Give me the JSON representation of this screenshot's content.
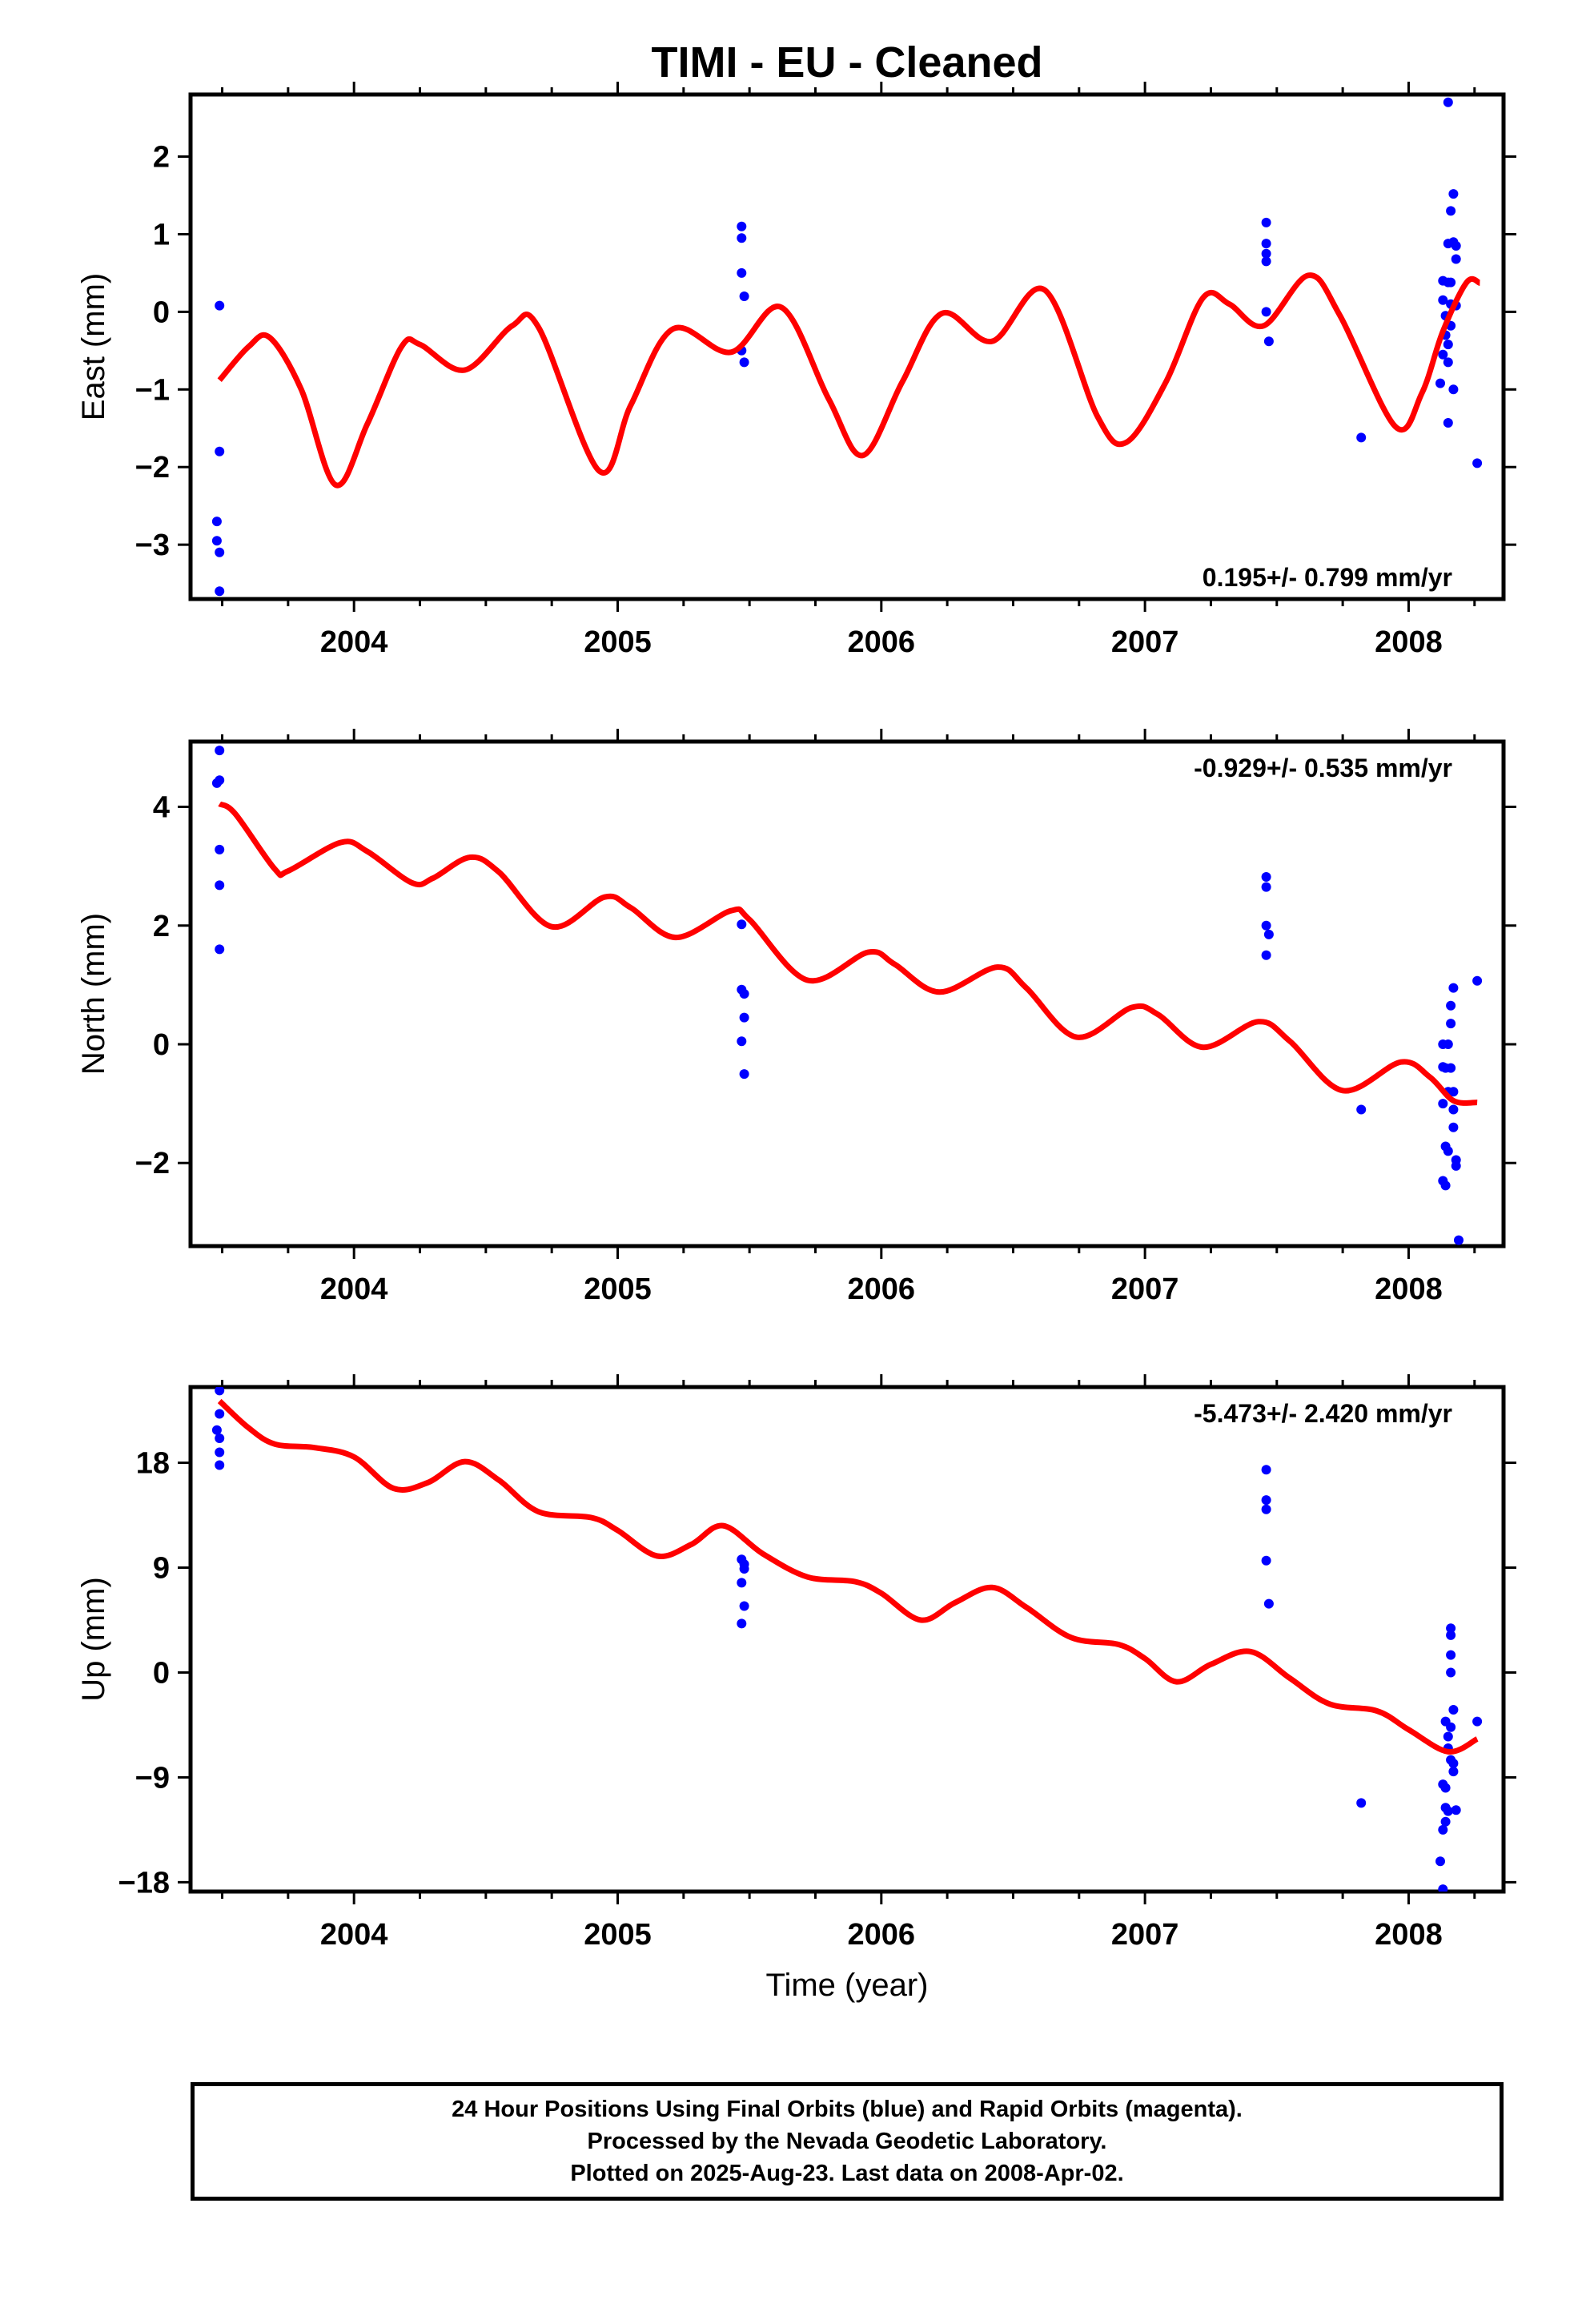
{
  "title": "TIMI  - EU - Cleaned",
  "footer": {
    "line1": "24 Hour Positions Using Final Orbits (blue) and Rapid Orbits (magenta).",
    "line2": "Processed by the Nevada Geodetic Laboratory.",
    "line3": "Plotted on 2025-Aug-23. Last data on 2008-Apr-02."
  },
  "colors": {
    "final_orbits": "#0000ff",
    "model_fit": "#ff0000",
    "frame": "#000000"
  },
  "chart_data": [
    {
      "type": "scatter",
      "ylabel": "East (mm)",
      "xlabel": "",
      "xlim": [
        2003.38,
        2008.36
      ],
      "ylim": [
        -3.7,
        2.8
      ],
      "xticks": [
        "2004",
        "2005",
        "2006",
        "2007",
        "2008"
      ],
      "yticks": [
        2,
        1,
        0,
        -1,
        -2,
        -3
      ],
      "rate_label": "0.195+/- 0.799 mm/yr",
      "rate_position": "bottom-right",
      "points": [
        [
          2003.49,
          0.08
        ],
        [
          2003.49,
          -1.8
        ],
        [
          2003.48,
          -2.7
        ],
        [
          2003.48,
          -2.95
        ],
        [
          2003.49,
          -3.1
        ],
        [
          2003.49,
          -3.6
        ],
        [
          2005.47,
          1.1
        ],
        [
          2005.47,
          0.95
        ],
        [
          2005.47,
          0.5
        ],
        [
          2005.48,
          0.2
        ],
        [
          2005.47,
          -0.5
        ],
        [
          2005.48,
          -0.65
        ],
        [
          2007.46,
          1.15
        ],
        [
          2007.46,
          0.88
        ],
        [
          2007.46,
          0.75
        ],
        [
          2007.46,
          0.65
        ],
        [
          2007.46,
          0.0
        ],
        [
          2007.47,
          -0.38
        ],
        [
          2007.82,
          -1.62
        ],
        [
          2008.13,
          0.4
        ],
        [
          2008.13,
          0.15
        ],
        [
          2008.13,
          -0.55
        ],
        [
          2008.12,
          -0.92
        ],
        [
          2008.14,
          -0.3
        ],
        [
          2008.14,
          -0.05
        ],
        [
          2008.15,
          2.7
        ],
        [
          2008.15,
          0.88
        ],
        [
          2008.15,
          0.38
        ],
        [
          2008.15,
          -0.42
        ],
        [
          2008.15,
          -0.65
        ],
        [
          2008.15,
          -1.43
        ],
        [
          2008.16,
          1.3
        ],
        [
          2008.16,
          0.38
        ],
        [
          2008.16,
          0.1
        ],
        [
          2008.16,
          -0.18
        ],
        [
          2008.17,
          0.9
        ],
        [
          2008.17,
          1.52
        ],
        [
          2008.18,
          0.85
        ],
        [
          2008.18,
          0.68
        ],
        [
          2008.18,
          0.08
        ],
        [
          2008.17,
          -1.0
        ],
        [
          2008.26,
          -1.95
        ]
      ],
      "model": [
        [
          2003.49,
          -0.88
        ],
        [
          2003.6,
          -0.45
        ],
        [
          2003.68,
          -0.33
        ],
        [
          2003.8,
          -1.0
        ],
        [
          2003.93,
          -2.23
        ],
        [
          2004.05,
          -1.45
        ],
        [
          2004.18,
          -0.45
        ],
        [
          2004.25,
          -0.42
        ],
        [
          2004.42,
          -0.75
        ],
        [
          2004.6,
          -0.18
        ],
        [
          2004.7,
          -0.2
        ],
        [
          2004.93,
          -2.05
        ],
        [
          2005.05,
          -1.2
        ],
        [
          2005.21,
          -0.22
        ],
        [
          2005.43,
          -0.52
        ],
        [
          2005.62,
          0.06
        ],
        [
          2005.8,
          -1.12
        ],
        [
          2005.93,
          -1.85
        ],
        [
          2006.08,
          -0.9
        ],
        [
          2006.23,
          -0.02
        ],
        [
          2006.42,
          -0.38
        ],
        [
          2006.62,
          0.28
        ],
        [
          2006.82,
          -1.35
        ],
        [
          2006.93,
          -1.68
        ],
        [
          2007.08,
          -0.9
        ],
        [
          2007.22,
          0.18
        ],
        [
          2007.32,
          0.1
        ],
        [
          2007.45,
          -0.18
        ],
        [
          2007.62,
          0.47
        ],
        [
          2007.74,
          -0.05
        ],
        [
          2007.95,
          -1.48
        ],
        [
          2008.05,
          -1.05
        ],
        [
          2008.13,
          -0.25
        ],
        [
          2008.22,
          0.38
        ],
        [
          2008.27,
          0.37
        ]
      ]
    },
    {
      "type": "scatter",
      "ylabel": "North (mm)",
      "xlabel": "",
      "xlim": [
        2003.38,
        2008.36
      ],
      "ylim": [
        -3.4,
        5.1
      ],
      "xticks": [
        "2004",
        "2005",
        "2006",
        "2007",
        "2008"
      ],
      "yticks": [
        4,
        2,
        0,
        -2
      ],
      "rate_label": "-0.929+/- 0.535 mm/yr",
      "rate_position": "top-right",
      "points": [
        [
          2003.49,
          4.95
        ],
        [
          2003.49,
          4.45
        ],
        [
          2003.48,
          4.4
        ],
        [
          2003.49,
          3.28
        ],
        [
          2003.49,
          2.68
        ],
        [
          2003.49,
          1.6
        ],
        [
          2005.47,
          2.02
        ],
        [
          2005.47,
          0.92
        ],
        [
          2005.48,
          0.85
        ],
        [
          2005.48,
          0.45
        ],
        [
          2005.47,
          0.05
        ],
        [
          2005.48,
          -0.5
        ],
        [
          2007.46,
          2.82
        ],
        [
          2007.46,
          2.65
        ],
        [
          2007.46,
          2.0
        ],
        [
          2007.47,
          1.85
        ],
        [
          2007.46,
          1.5
        ],
        [
          2007.82,
          -1.1
        ],
        [
          2008.13,
          0.0
        ],
        [
          2008.13,
          -0.38
        ],
        [
          2008.13,
          -1.0
        ],
        [
          2008.13,
          -2.3
        ],
        [
          2008.14,
          -0.4
        ],
        [
          2008.14,
          -1.72
        ],
        [
          2008.14,
          -2.38
        ],
        [
          2008.15,
          0.0
        ],
        [
          2008.15,
          -0.8
        ],
        [
          2008.15,
          -1.8
        ],
        [
          2008.16,
          0.65
        ],
        [
          2008.16,
          0.35
        ],
        [
          2008.16,
          -0.4
        ],
        [
          2008.17,
          0.95
        ],
        [
          2008.17,
          -0.8
        ],
        [
          2008.17,
          -1.1
        ],
        [
          2008.17,
          -1.4
        ],
        [
          2008.18,
          -1.95
        ],
        [
          2008.18,
          -2.05
        ],
        [
          2008.19,
          -3.3
        ],
        [
          2008.26,
          1.07
        ]
      ],
      "model": [
        [
          2003.49,
          4.05
        ],
        [
          2003.55,
          3.88
        ],
        [
          2003.7,
          2.95
        ],
        [
          2003.75,
          2.92
        ],
        [
          2003.95,
          3.4
        ],
        [
          2004.05,
          3.25
        ],
        [
          2004.22,
          2.72
        ],
        [
          2004.3,
          2.8
        ],
        [
          2004.44,
          3.15
        ],
        [
          2004.55,
          2.9
        ],
        [
          2004.75,
          1.98
        ],
        [
          2004.95,
          2.48
        ],
        [
          2005.05,
          2.3
        ],
        [
          2005.22,
          1.8
        ],
        [
          2005.43,
          2.25
        ],
        [
          2005.5,
          2.1
        ],
        [
          2005.72,
          1.08
        ],
        [
          2005.95,
          1.55
        ],
        [
          2006.05,
          1.35
        ],
        [
          2006.22,
          0.88
        ],
        [
          2006.44,
          1.3
        ],
        [
          2006.55,
          0.95
        ],
        [
          2006.74,
          0.12
        ],
        [
          2006.95,
          0.62
        ],
        [
          2007.05,
          0.5
        ],
        [
          2007.22,
          -0.05
        ],
        [
          2007.43,
          0.38
        ],
        [
          2007.55,
          0.05
        ],
        [
          2007.75,
          -0.78
        ],
        [
          2007.97,
          -0.3
        ],
        [
          2008.08,
          -0.55
        ],
        [
          2008.17,
          -0.95
        ],
        [
          2008.26,
          -0.98
        ]
      ]
    },
    {
      "type": "scatter",
      "ylabel": "Up (mm)",
      "xlabel": "Time (year)",
      "xlim": [
        2003.38,
        2008.36
      ],
      "ylim": [
        -18.8,
        24.5
      ],
      "xticks": [
        "2004",
        "2005",
        "2006",
        "2007",
        "2008"
      ],
      "yticks": [
        18,
        9,
        0,
        -9,
        -18
      ],
      "rate_label": "-5.473+/- 2.420 mm/yr",
      "rate_position": "top-right",
      "points": [
        [
          2003.49,
          24.2
        ],
        [
          2003.49,
          22.2
        ],
        [
          2003.48,
          20.8
        ],
        [
          2003.49,
          20.1
        ],
        [
          2003.49,
          18.9
        ],
        [
          2003.49,
          17.8
        ],
        [
          2005.47,
          9.7
        ],
        [
          2005.48,
          9.3
        ],
        [
          2005.48,
          8.9
        ],
        [
          2005.47,
          7.7
        ],
        [
          2005.48,
          5.7
        ],
        [
          2005.47,
          4.2
        ],
        [
          2007.46,
          17.4
        ],
        [
          2007.46,
          14.8
        ],
        [
          2007.46,
          14.0
        ],
        [
          2007.46,
          9.6
        ],
        [
          2007.47,
          5.9
        ],
        [
          2007.82,
          -11.2
        ],
        [
          2008.13,
          -9.6
        ],
        [
          2008.13,
          -13.5
        ],
        [
          2008.12,
          -16.2
        ],
        [
          2008.13,
          -18.6
        ],
        [
          2008.14,
          -4.2
        ],
        [
          2008.14,
          -9.9
        ],
        [
          2008.14,
          -11.6
        ],
        [
          2008.14,
          -12.8
        ],
        [
          2008.15,
          -5.5
        ],
        [
          2008.15,
          -6.5
        ],
        [
          2008.15,
          -11.9
        ],
        [
          2008.16,
          3.8
        ],
        [
          2008.16,
          3.2
        ],
        [
          2008.16,
          1.5
        ],
        [
          2008.16,
          0.0
        ],
        [
          2008.16,
          -4.7
        ],
        [
          2008.16,
          -7.5
        ],
        [
          2008.17,
          -3.2
        ],
        [
          2008.17,
          -7.8
        ],
        [
          2008.17,
          -8.5
        ],
        [
          2008.18,
          -11.8
        ],
        [
          2008.26,
          -4.2
        ]
      ],
      "model": [
        [
          2003.49,
          23.3
        ],
        [
          2003.6,
          21.0
        ],
        [
          2003.7,
          19.6
        ],
        [
          2003.85,
          19.3
        ],
        [
          2004.0,
          18.5
        ],
        [
          2004.15,
          15.8
        ],
        [
          2004.28,
          16.3
        ],
        [
          2004.42,
          18.1
        ],
        [
          2004.55,
          16.5
        ],
        [
          2004.7,
          13.8
        ],
        [
          2004.9,
          13.3
        ],
        [
          2005.0,
          12.2
        ],
        [
          2005.15,
          10.0
        ],
        [
          2005.28,
          11.0
        ],
        [
          2005.4,
          12.6
        ],
        [
          2005.55,
          10.2
        ],
        [
          2005.72,
          8.2
        ],
        [
          2005.9,
          7.8
        ],
        [
          2006.0,
          6.8
        ],
        [
          2006.15,
          4.5
        ],
        [
          2006.28,
          6.0
        ],
        [
          2006.42,
          7.3
        ],
        [
          2006.55,
          5.6
        ],
        [
          2006.72,
          3.0
        ],
        [
          2006.9,
          2.4
        ],
        [
          2007.0,
          1.2
        ],
        [
          2007.12,
          -0.8
        ],
        [
          2007.25,
          0.7
        ],
        [
          2007.4,
          1.8
        ],
        [
          2007.55,
          -0.5
        ],
        [
          2007.7,
          -2.7
        ],
        [
          2007.88,
          -3.3
        ],
        [
          2008.0,
          -4.9
        ],
        [
          2008.15,
          -6.8
        ],
        [
          2008.26,
          -5.7
        ]
      ]
    }
  ]
}
